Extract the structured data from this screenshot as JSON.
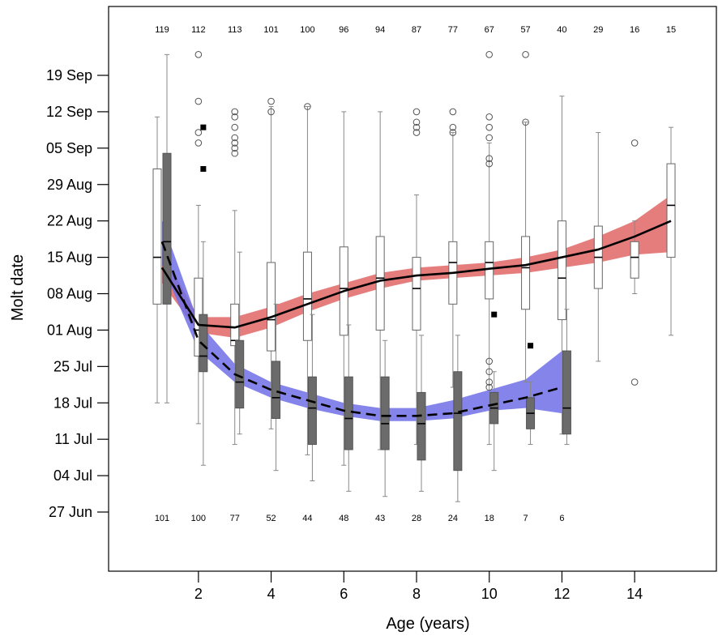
{
  "chart_data": {
    "type": "box",
    "xlabel": "Age (years)",
    "ylabel": "Molt date",
    "xlim": [
      0,
      15.5
    ],
    "ylim": [
      -12,
      87
    ],
    "x_ticks": [
      2,
      4,
      6,
      8,
      10,
      12,
      14
    ],
    "y_ticks": [
      {
        "value": 0,
        "label": "27 Jun"
      },
      {
        "value": 7,
        "label": "04 Jul"
      },
      {
        "value": 14,
        "label": "11 Jul"
      },
      {
        "value": 21,
        "label": "18 Jul"
      },
      {
        "value": 28,
        "label": "25 Jul"
      },
      {
        "value": 35,
        "label": "01 Aug"
      },
      {
        "value": 42,
        "label": "08 Aug"
      },
      {
        "value": 49,
        "label": "15 Aug"
      },
      {
        "value": 56,
        "label": "22 Aug"
      },
      {
        "value": 63,
        "label": "29 Aug"
      },
      {
        "value": 70,
        "label": "05 Sep"
      },
      {
        "value": 77,
        "label": "12 Sep"
      },
      {
        "value": 84,
        "label": "19 Sep"
      }
    ],
    "colors": {
      "upper_band": "#e06666",
      "lower_band": "#6f6fe6",
      "lower_box": "#6b6b6b",
      "upper_box": "#ffffff"
    },
    "top_counts": [
      {
        "age": 1,
        "n": "119"
      },
      {
        "age": 2,
        "n": "112"
      },
      {
        "age": 3,
        "n": "113"
      },
      {
        "age": 4,
        "n": "101"
      },
      {
        "age": 5,
        "n": "100"
      },
      {
        "age": 6,
        "n": "96"
      },
      {
        "age": 7,
        "n": "94"
      },
      {
        "age": 8,
        "n": "87"
      },
      {
        "age": 9,
        "n": "77"
      },
      {
        "age": 10,
        "n": "67"
      },
      {
        "age": 11,
        "n": "57"
      },
      {
        "age": 12,
        "n": "40"
      },
      {
        "age": 13,
        "n": "29"
      },
      {
        "age": 14,
        "n": "16"
      },
      {
        "age": 15,
        "n": "15"
      }
    ],
    "bottom_counts": [
      {
        "age": 1,
        "n": "101"
      },
      {
        "age": 2,
        "n": "100"
      },
      {
        "age": 3,
        "n": "77"
      },
      {
        "age": 4,
        "n": "52"
      },
      {
        "age": 5,
        "n": "44"
      },
      {
        "age": 6,
        "n": "48"
      },
      {
        "age": 7,
        "n": "43"
      },
      {
        "age": 8,
        "n": "28"
      },
      {
        "age": 9,
        "n": "24"
      },
      {
        "age": 10,
        "n": "18"
      },
      {
        "age": 11,
        "n": "7"
      },
      {
        "age": 12,
        "n": "6"
      }
    ],
    "upper_boxes": [
      {
        "age": 1,
        "lo": 21,
        "q1": 40,
        "med": 49,
        "q3": 66,
        "hi": 76,
        "out": []
      },
      {
        "age": 2,
        "lo": 17,
        "q1": 30,
        "med": 35,
        "q3": 45,
        "hi": 59,
        "out": [
          88,
          79,
          73,
          71
        ]
      },
      {
        "age": 3,
        "lo": 13,
        "q1": 32,
        "med": 33,
        "q3": 40,
        "hi": 58,
        "out": [
          77,
          76,
          74,
          72,
          71,
          70,
          69
        ]
      },
      {
        "age": 4,
        "lo": 16,
        "q1": 31,
        "med": 37,
        "q3": 48,
        "hi": 78,
        "out": [
          79,
          77
        ]
      },
      {
        "age": 5,
        "lo": 11,
        "q1": 33,
        "med": 41,
        "q3": 50,
        "hi": 78,
        "out": [
          78
        ]
      },
      {
        "age": 6,
        "lo": 9,
        "q1": 34,
        "med": 43,
        "q3": 51,
        "hi": 77,
        "out": []
      },
      {
        "age": 7,
        "lo": 12,
        "q1": 35,
        "med": 45,
        "q3": 53,
        "hi": 77,
        "out": []
      },
      {
        "age": 8,
        "lo": 13,
        "q1": 35,
        "med": 43,
        "q3": 49,
        "hi": 61,
        "out": [
          77,
          75,
          74,
          73
        ]
      },
      {
        "age": 9,
        "lo": 24,
        "q1": 40,
        "med": 48,
        "q3": 52,
        "hi": 73,
        "out": [
          77,
          74,
          73
        ]
      },
      {
        "age": 10,
        "lo": 13,
        "q1": 41,
        "med": 48,
        "q3": 52,
        "hi": 71,
        "out": [
          88,
          76,
          74,
          72,
          68,
          67,
          29,
          27,
          25,
          24
        ]
      },
      {
        "age": 11,
        "lo": 25,
        "q1": 39,
        "med": 47,
        "q3": 53,
        "hi": 75,
        "out": [
          88,
          75
        ]
      },
      {
        "age": 12,
        "lo": 15,
        "q1": 37,
        "med": 45,
        "q3": 56,
        "hi": 80,
        "out": []
      },
      {
        "age": 13,
        "lo": 29,
        "q1": 43,
        "med": 49,
        "q3": 55,
        "hi": 73,
        "out": []
      },
      {
        "age": 14,
        "lo": 42,
        "q1": 45,
        "med": 49,
        "q3": 52,
        "hi": 56,
        "out": [
          71,
          25
        ]
      },
      {
        "age": 15,
        "lo": 34,
        "q1": 49,
        "med": 59,
        "q3": 67,
        "hi": 74,
        "out": []
      }
    ],
    "lower_boxes": [
      {
        "age": 1,
        "lo": 21,
        "q1": 40,
        "med": 52,
        "q3": 69,
        "hi": 88,
        "out": []
      },
      {
        "age": 2,
        "lo": 9,
        "q1": 27,
        "med": 30,
        "q3": 38,
        "hi": 52,
        "out": [
          74,
          66
        ]
      },
      {
        "age": 3,
        "lo": 15,
        "q1": 20,
        "med": 25,
        "q3": 33,
        "hi": 50,
        "out": []
      },
      {
        "age": 4,
        "lo": 8,
        "q1": 18,
        "med": 22,
        "q3": 29,
        "hi": 40,
        "out": []
      },
      {
        "age": 5,
        "lo": 6,
        "q1": 13,
        "med": 20,
        "q3": 26,
        "hi": 38,
        "out": []
      },
      {
        "age": 6,
        "lo": 4,
        "q1": 12,
        "med": 18,
        "q3": 26,
        "hi": 36,
        "out": []
      },
      {
        "age": 7,
        "lo": 3,
        "q1": 12,
        "med": 17,
        "q3": 26,
        "hi": 33,
        "out": []
      },
      {
        "age": 8,
        "lo": 4,
        "q1": 10,
        "med": 17,
        "q3": 23,
        "hi": 34,
        "out": []
      },
      {
        "age": 9,
        "lo": 2,
        "q1": 8,
        "med": 19,
        "q3": 27,
        "hi": 34,
        "out": []
      },
      {
        "age": 10,
        "lo": 8,
        "q1": 17,
        "med": 20,
        "q3": 23,
        "hi": 27,
        "out": [
          38
        ]
      },
      {
        "age": 11,
        "lo": 13,
        "q1": 16,
        "med": 19,
        "q3": 22,
        "hi": 25,
        "out": [
          32
        ]
      },
      {
        "age": 12,
        "lo": 13,
        "q1": 15,
        "med": 20,
        "q3": 31,
        "hi": 39,
        "out": []
      }
    ],
    "upper_curve": {
      "x": [
        1,
        2,
        3,
        4,
        5,
        6,
        7,
        8,
        9,
        10,
        11,
        12,
        13,
        14,
        15
      ],
      "y": [
        47,
        36,
        35.5,
        37.5,
        40,
        42.5,
        44.5,
        45.5,
        46,
        46.8,
        47.5,
        49,
        50.5,
        53,
        56
      ],
      "band_lo": [
        44,
        34.5,
        33.5,
        35.5,
        38.5,
        41,
        43,
        44.5,
        45,
        45.5,
        46,
        47,
        48,
        49.5,
        50
      ],
      "band_hi": [
        50,
        37.5,
        37.5,
        39.5,
        42,
        44,
        46,
        47,
        47.5,
        48,
        49,
        50.5,
        53,
        56,
        61
      ]
    },
    "lower_curve": {
      "x": [
        1,
        2,
        3,
        4,
        5,
        6,
        7,
        8,
        9,
        10,
        11,
        12
      ],
      "y": [
        52,
        33,
        26.5,
        23.5,
        21.5,
        19.5,
        18.5,
        18.5,
        19,
        20.5,
        22,
        24
      ],
      "band_lo": [
        47.5,
        31,
        25,
        22,
        20,
        18.5,
        17.5,
        17.5,
        18,
        19.5,
        20,
        19
      ],
      "band_hi": [
        56,
        36.5,
        28.5,
        25,
        23,
        21,
        20,
        20,
        21.5,
        23.5,
        25.5,
        31
      ]
    }
  }
}
